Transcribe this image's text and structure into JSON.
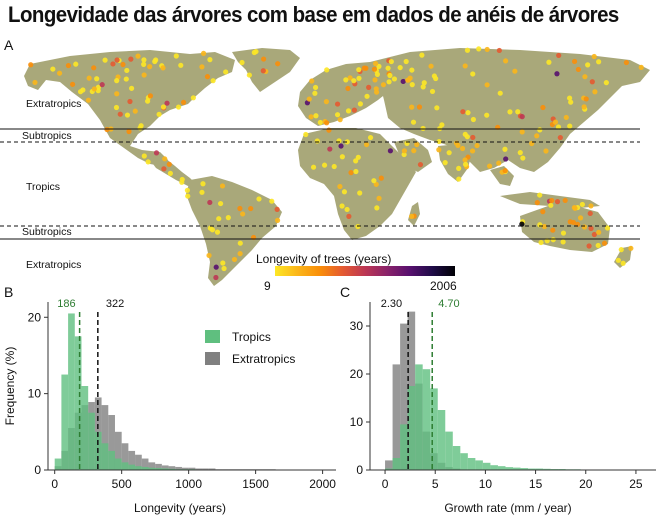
{
  "title": "Longevidade das árvores com base em dados de anéis de árvores",
  "colors": {
    "land": "#a9a87a",
    "ocean": "#ffffff",
    "tropics": "#5fbf7f",
    "extratropics": "#808080",
    "tropics_median": "#2e7d32",
    "extratropics_median": "#111111"
  },
  "map": {
    "panel_label": "A",
    "zone_labels": [
      "Extratropics",
      "Subtropics",
      "Tropics",
      "Subtropics",
      "Extratropics"
    ],
    "legend": {
      "title": "Longevity of trees (years)",
      "min_label": "9",
      "max_label": "2006",
      "colormap": "inferno-reversed",
      "colors": [
        "#fde725",
        "#fbb61a",
        "#f98e09",
        "#e45a31",
        "#bc3754",
        "#89226a",
        "#57106e",
        "#1f0c48",
        "#000004"
      ]
    }
  },
  "chart_data": [
    {
      "type": "bar",
      "panel_label": "B",
      "xlabel": "Longevity (years)",
      "ylabel": "Frequency (%)",
      "xlim": [
        -50,
        2100
      ],
      "ylim": [
        0,
        22
      ],
      "xticks": [
        0,
        500,
        1000,
        1500,
        2000
      ],
      "yticks": [
        0,
        10,
        20
      ],
      "bin_width": 50,
      "legend_position": "top-right",
      "series": [
        {
          "name": "Extratropics",
          "bin_starts": [
            0,
            50,
            100,
            150,
            200,
            250,
            300,
            350,
            400,
            450,
            500,
            550,
            600,
            650,
            700,
            750,
            800,
            850,
            900,
            950,
            1000,
            1050,
            1100,
            1150,
            1200,
            1250,
            1300,
            1350,
            1400,
            1450,
            1500,
            1550,
            1600,
            1650,
            1700,
            1750,
            1800,
            1850,
            1900,
            1950,
            2000
          ],
          "values": [
            0.5,
            2.5,
            5.5,
            7.5,
            8.5,
            8.9,
            9.5,
            8.5,
            7.2,
            5.0,
            3.5,
            2.5,
            2.0,
            1.5,
            1.0,
            0.8,
            0.6,
            0.5,
            0.4,
            0.3,
            0.3,
            0.2,
            0.2,
            0.2,
            0.1,
            0.1,
            0.1,
            0.1,
            0.1,
            0.1,
            0.1,
            0.1,
            0.1,
            0.05,
            0.05,
            0.05,
            0.05,
            0.05,
            0.05,
            0.05,
            0.05
          ]
        },
        {
          "name": "Tropics",
          "bin_starts": [
            0,
            50,
            100,
            150,
            200,
            250,
            300,
            350,
            400,
            450,
            500,
            550,
            600,
            650,
            700,
            750,
            800,
            850,
            900,
            950,
            1000,
            1050,
            1100
          ],
          "values": [
            1.5,
            12.5,
            20.5,
            17.5,
            11.0,
            7.5,
            5.0,
            3.5,
            2.5,
            1.5,
            1.0,
            0.7,
            0.5,
            0.4,
            0.3,
            0.25,
            0.2,
            0.15,
            0.1,
            0.1,
            0.1,
            0.05,
            0.05
          ]
        }
      ],
      "medians": [
        {
          "series": "Tropics",
          "value": 186,
          "label": "186"
        },
        {
          "series": "Extratropics",
          "value": 322,
          "label": "322"
        }
      ]
    },
    {
      "type": "bar",
      "panel_label": "C",
      "xlabel": "Growth rate (mm / year)",
      "ylabel": "",
      "xlim": [
        -1.5,
        27
      ],
      "ylim": [
        0,
        35
      ],
      "xticks": [
        0,
        5,
        10,
        15,
        20,
        25
      ],
      "yticks": [
        0,
        10,
        20,
        30
      ],
      "bin_width": 0.75,
      "series": [
        {
          "name": "Extratropics",
          "bin_starts": [
            0,
            0.75,
            1.5,
            2.25,
            3.0,
            3.75,
            4.5,
            5.25,
            6.0,
            6.75,
            7.5,
            8.25
          ],
          "values": [
            2.0,
            22.0,
            30.5,
            33.0,
            18.0,
            8.0,
            3.5,
            1.5,
            0.6,
            0.3,
            0.1,
            0.05
          ]
        },
        {
          "name": "Tropics",
          "bin_starts": [
            0,
            0.75,
            1.5,
            2.25,
            3.0,
            3.75,
            4.5,
            5.25,
            6.0,
            6.75,
            7.5,
            8.25,
            9.0,
            9.75,
            10.5,
            11.25,
            12.0,
            12.75,
            13.5,
            14.25,
            15.0,
            15.75,
            16.5,
            17.25,
            18.0,
            18.75,
            19.5,
            20.25,
            21.0,
            21.75,
            22.5,
            23.25,
            24.0,
            24.75,
            25.5
          ],
          "values": [
            0.3,
            2.5,
            9.5,
            17.5,
            22.0,
            21.0,
            17.0,
            12.5,
            8.0,
            5.0,
            3.5,
            2.5,
            2.0,
            1.5,
            1.0,
            0.8,
            0.6,
            0.5,
            0.4,
            0.3,
            0.3,
            0.25,
            0.2,
            0.2,
            0.15,
            0.15,
            0.1,
            0.1,
            0.1,
            0.1,
            0.05,
            0.05,
            0.05,
            0.05,
            0.05
          ]
        }
      ],
      "medians": [
        {
          "series": "Extratropics",
          "value": 2.3,
          "label": "2.30"
        },
        {
          "series": "Tropics",
          "value": 4.7,
          "label": "4.70"
        }
      ]
    }
  ]
}
